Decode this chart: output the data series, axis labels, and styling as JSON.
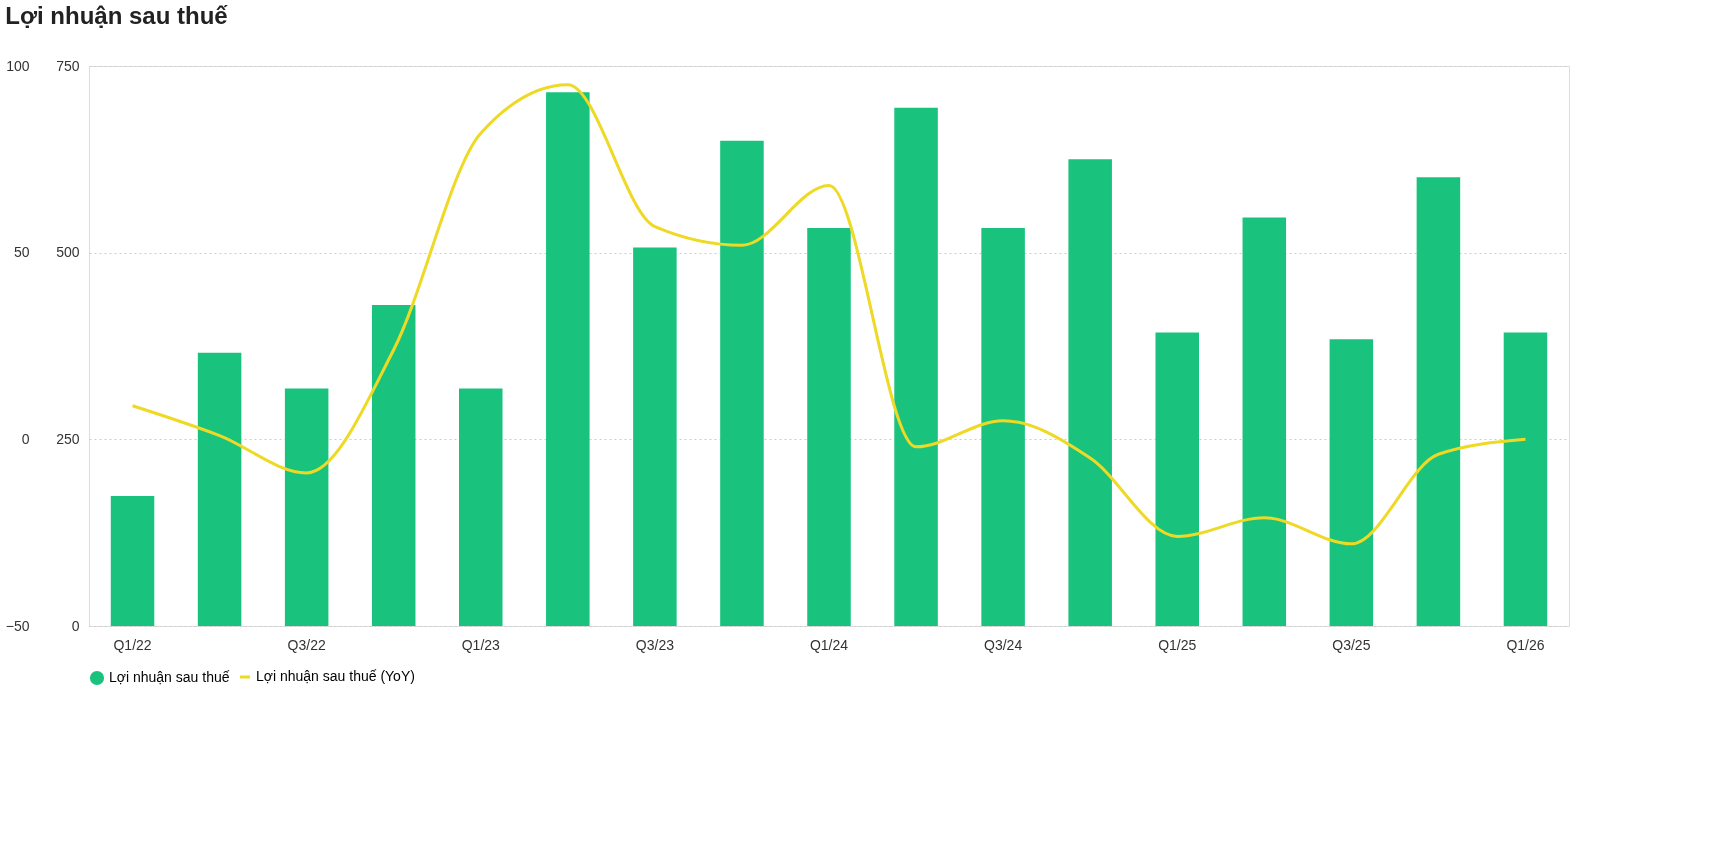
{
  "chart_data": {
    "type": "bar",
    "title": "Lợi nhuận sau thuế",
    "categories": [
      "Q1/22",
      null,
      "Q3/22",
      null,
      "Q1/23",
      null,
      "Q3/23",
      null,
      "Q1/24",
      null,
      "Q3/24",
      null,
      "Q1/25",
      null,
      "Q3/25",
      null,
      "Q1/26"
    ],
    "series": [
      {
        "name": "Lợi nhuận sau thuế",
        "color": "#19c37d",
        "values": [
          174,
          366,
          318,
          430,
          318,
          715,
          507,
          650,
          533,
          694,
          533,
          625,
          393,
          547,
          384,
          601,
          393
        ]
      },
      {
        "name": "Lợi nhuận sau thuế (YoY)",
        "type": "line",
        "axis": "y2",
        "color": "#eed925",
        "values": [
          9,
          1,
          -9,
          24,
          82,
          95,
          57,
          52,
          68,
          -2,
          5,
          -5,
          -26,
          -21,
          -28,
          -4,
          0
        ]
      }
    ],
    "ylim": [
      0,
      750
    ],
    "yticks": [
      0,
      250,
      500,
      750
    ],
    "y2lim": [
      -50,
      100
    ],
    "y2ticks": [
      -50,
      0,
      50,
      100
    ],
    "grid": "y",
    "legend": "bottom",
    "line_style": "solid",
    "marker": "none"
  }
}
